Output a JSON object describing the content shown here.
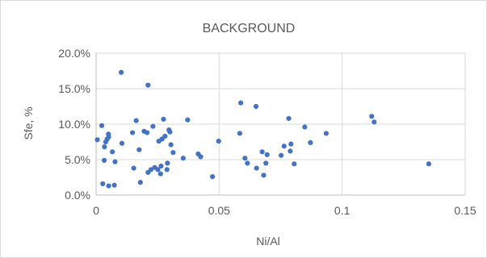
{
  "chart_data": {
    "type": "scatter",
    "title": "BACKGROUND",
    "xlabel": "Ni/Al",
    "ylabel": "Sfe, %",
    "xlim": [
      0,
      0.15
    ],
    "ylim": [
      0,
      0.2
    ],
    "x_ticks": [
      0,
      0.05,
      0.1,
      0.15
    ],
    "x_tick_labels": [
      "0",
      "0.05",
      "0.1",
      "0.15"
    ],
    "y_ticks": [
      0,
      0.05,
      0.1,
      0.15,
      0.2
    ],
    "y_tick_labels": [
      "0.0%",
      "5.0%",
      "10.0%",
      "15.0%",
      "20.0%"
    ],
    "grid": true,
    "legend": "none",
    "marker_color": "#4472c4",
    "series": [
      {
        "points": [
          [
            0.0005,
            0.078
          ],
          [
            0.0023,
            0.098
          ],
          [
            0.0027,
            0.016
          ],
          [
            0.0033,
            0.049
          ],
          [
            0.0034,
            0.068
          ],
          [
            0.0039,
            0.075
          ],
          [
            0.0045,
            0.079
          ],
          [
            0.005,
            0.086
          ],
          [
            0.0051,
            0.082
          ],
          [
            0.0051,
            0.013
          ],
          [
            0.0066,
            0.061
          ],
          [
            0.0074,
            0.014
          ],
          [
            0.0077,
            0.047
          ],
          [
            0.0102,
            0.173
          ],
          [
            0.0105,
            0.073
          ],
          [
            0.0148,
            0.088
          ],
          [
            0.0153,
            0.038
          ],
          [
            0.0163,
            0.105
          ],
          [
            0.0175,
            0.064
          ],
          [
            0.018,
            0.018
          ],
          [
            0.0195,
            0.09
          ],
          [
            0.0207,
            0.088
          ],
          [
            0.0211,
            0.032
          ],
          [
            0.0211,
            0.155
          ],
          [
            0.0223,
            0.036
          ],
          [
            0.0231,
            0.097
          ],
          [
            0.0238,
            0.039
          ],
          [
            0.0251,
            0.036
          ],
          [
            0.0255,
            0.076
          ],
          [
            0.0262,
            0.03
          ],
          [
            0.0264,
            0.041
          ],
          [
            0.0268,
            0.079
          ],
          [
            0.0274,
            0.107
          ],
          [
            0.028,
            0.083
          ],
          [
            0.0288,
            0.036
          ],
          [
            0.029,
            0.045
          ],
          [
            0.0296,
            0.092
          ],
          [
            0.03,
            0.089
          ],
          [
            0.0304,
            0.071
          ],
          [
            0.0313,
            0.06
          ],
          [
            0.0354,
            0.052
          ],
          [
            0.0372,
            0.106
          ],
          [
            0.0415,
            0.058
          ],
          [
            0.0425,
            0.054
          ],
          [
            0.0473,
            0.026
          ],
          [
            0.0498,
            0.076
          ],
          [
            0.0584,
            0.087
          ],
          [
            0.0588,
            0.13
          ],
          [
            0.0605,
            0.052
          ],
          [
            0.0615,
            0.045
          ],
          [
            0.065,
            0.125
          ],
          [
            0.0652,
            0.038
          ],
          [
            0.0675,
            0.061
          ],
          [
            0.0681,
            0.028
          ],
          [
            0.069,
            0.045
          ],
          [
            0.0695,
            0.057
          ],
          [
            0.0752,
            0.056
          ],
          [
            0.0764,
            0.069
          ],
          [
            0.0783,
            0.108
          ],
          [
            0.0789,
            0.062
          ],
          [
            0.0792,
            0.072
          ],
          [
            0.0805,
            0.044
          ],
          [
            0.0848,
            0.096
          ],
          [
            0.0871,
            0.074
          ],
          [
            0.0935,
            0.087
          ],
          [
            0.112,
            0.111
          ],
          [
            0.113,
            0.103
          ],
          [
            0.1352,
            0.044
          ]
        ]
      }
    ]
  }
}
